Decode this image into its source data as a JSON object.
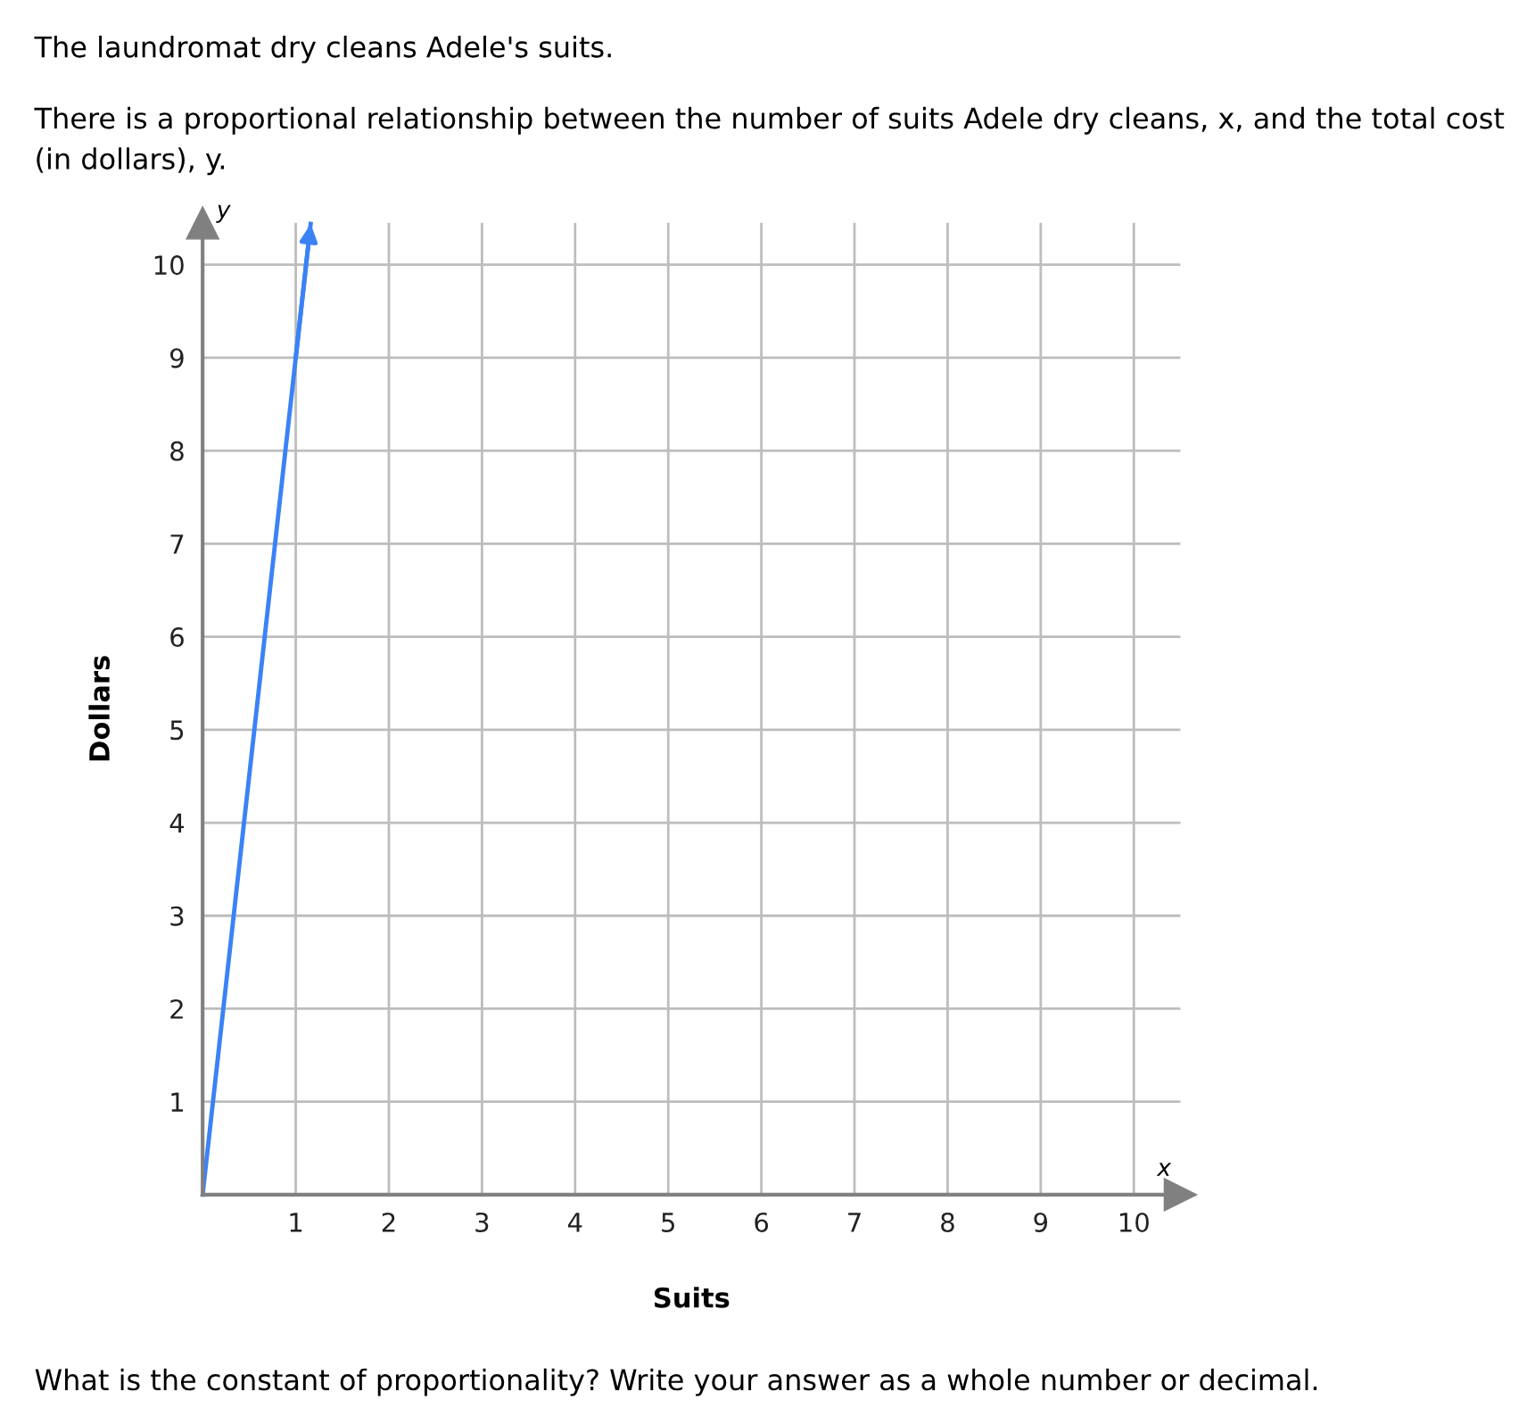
{
  "chart_data": {
    "type": "line",
    "title": "The laundromat dry cleans Adele's suits.",
    "subtitle": "There is a proportional relationship between the number of suits Adele dry cleans, x, and the total cost (in dollars), y.",
    "xlabel": "Suits",
    "ylabel": "Dollars",
    "annotations": [
      "y",
      "x",
      "What is the constant of proportionality? Write your answer as a whole number or decimal."
    ],
    "x": [
      0,
      1,
      1.16
    ],
    "series": [
      {
        "color": "#3b82f6",
        "values": [
          0,
          9,
          10.44
        ]
      }
    ],
    "xlim": [
      0,
      10.5
    ],
    "ylim": [
      0,
      10.45
    ],
    "xticks": [
      1,
      2,
      3,
      4,
      5,
      6,
      7,
      8,
      9,
      10
    ],
    "yticks": [
      1,
      2,
      3,
      4,
      5,
      6,
      7,
      8,
      9,
      10
    ],
    "grid": true,
    "marker": "none",
    "line_style": "solid"
  }
}
